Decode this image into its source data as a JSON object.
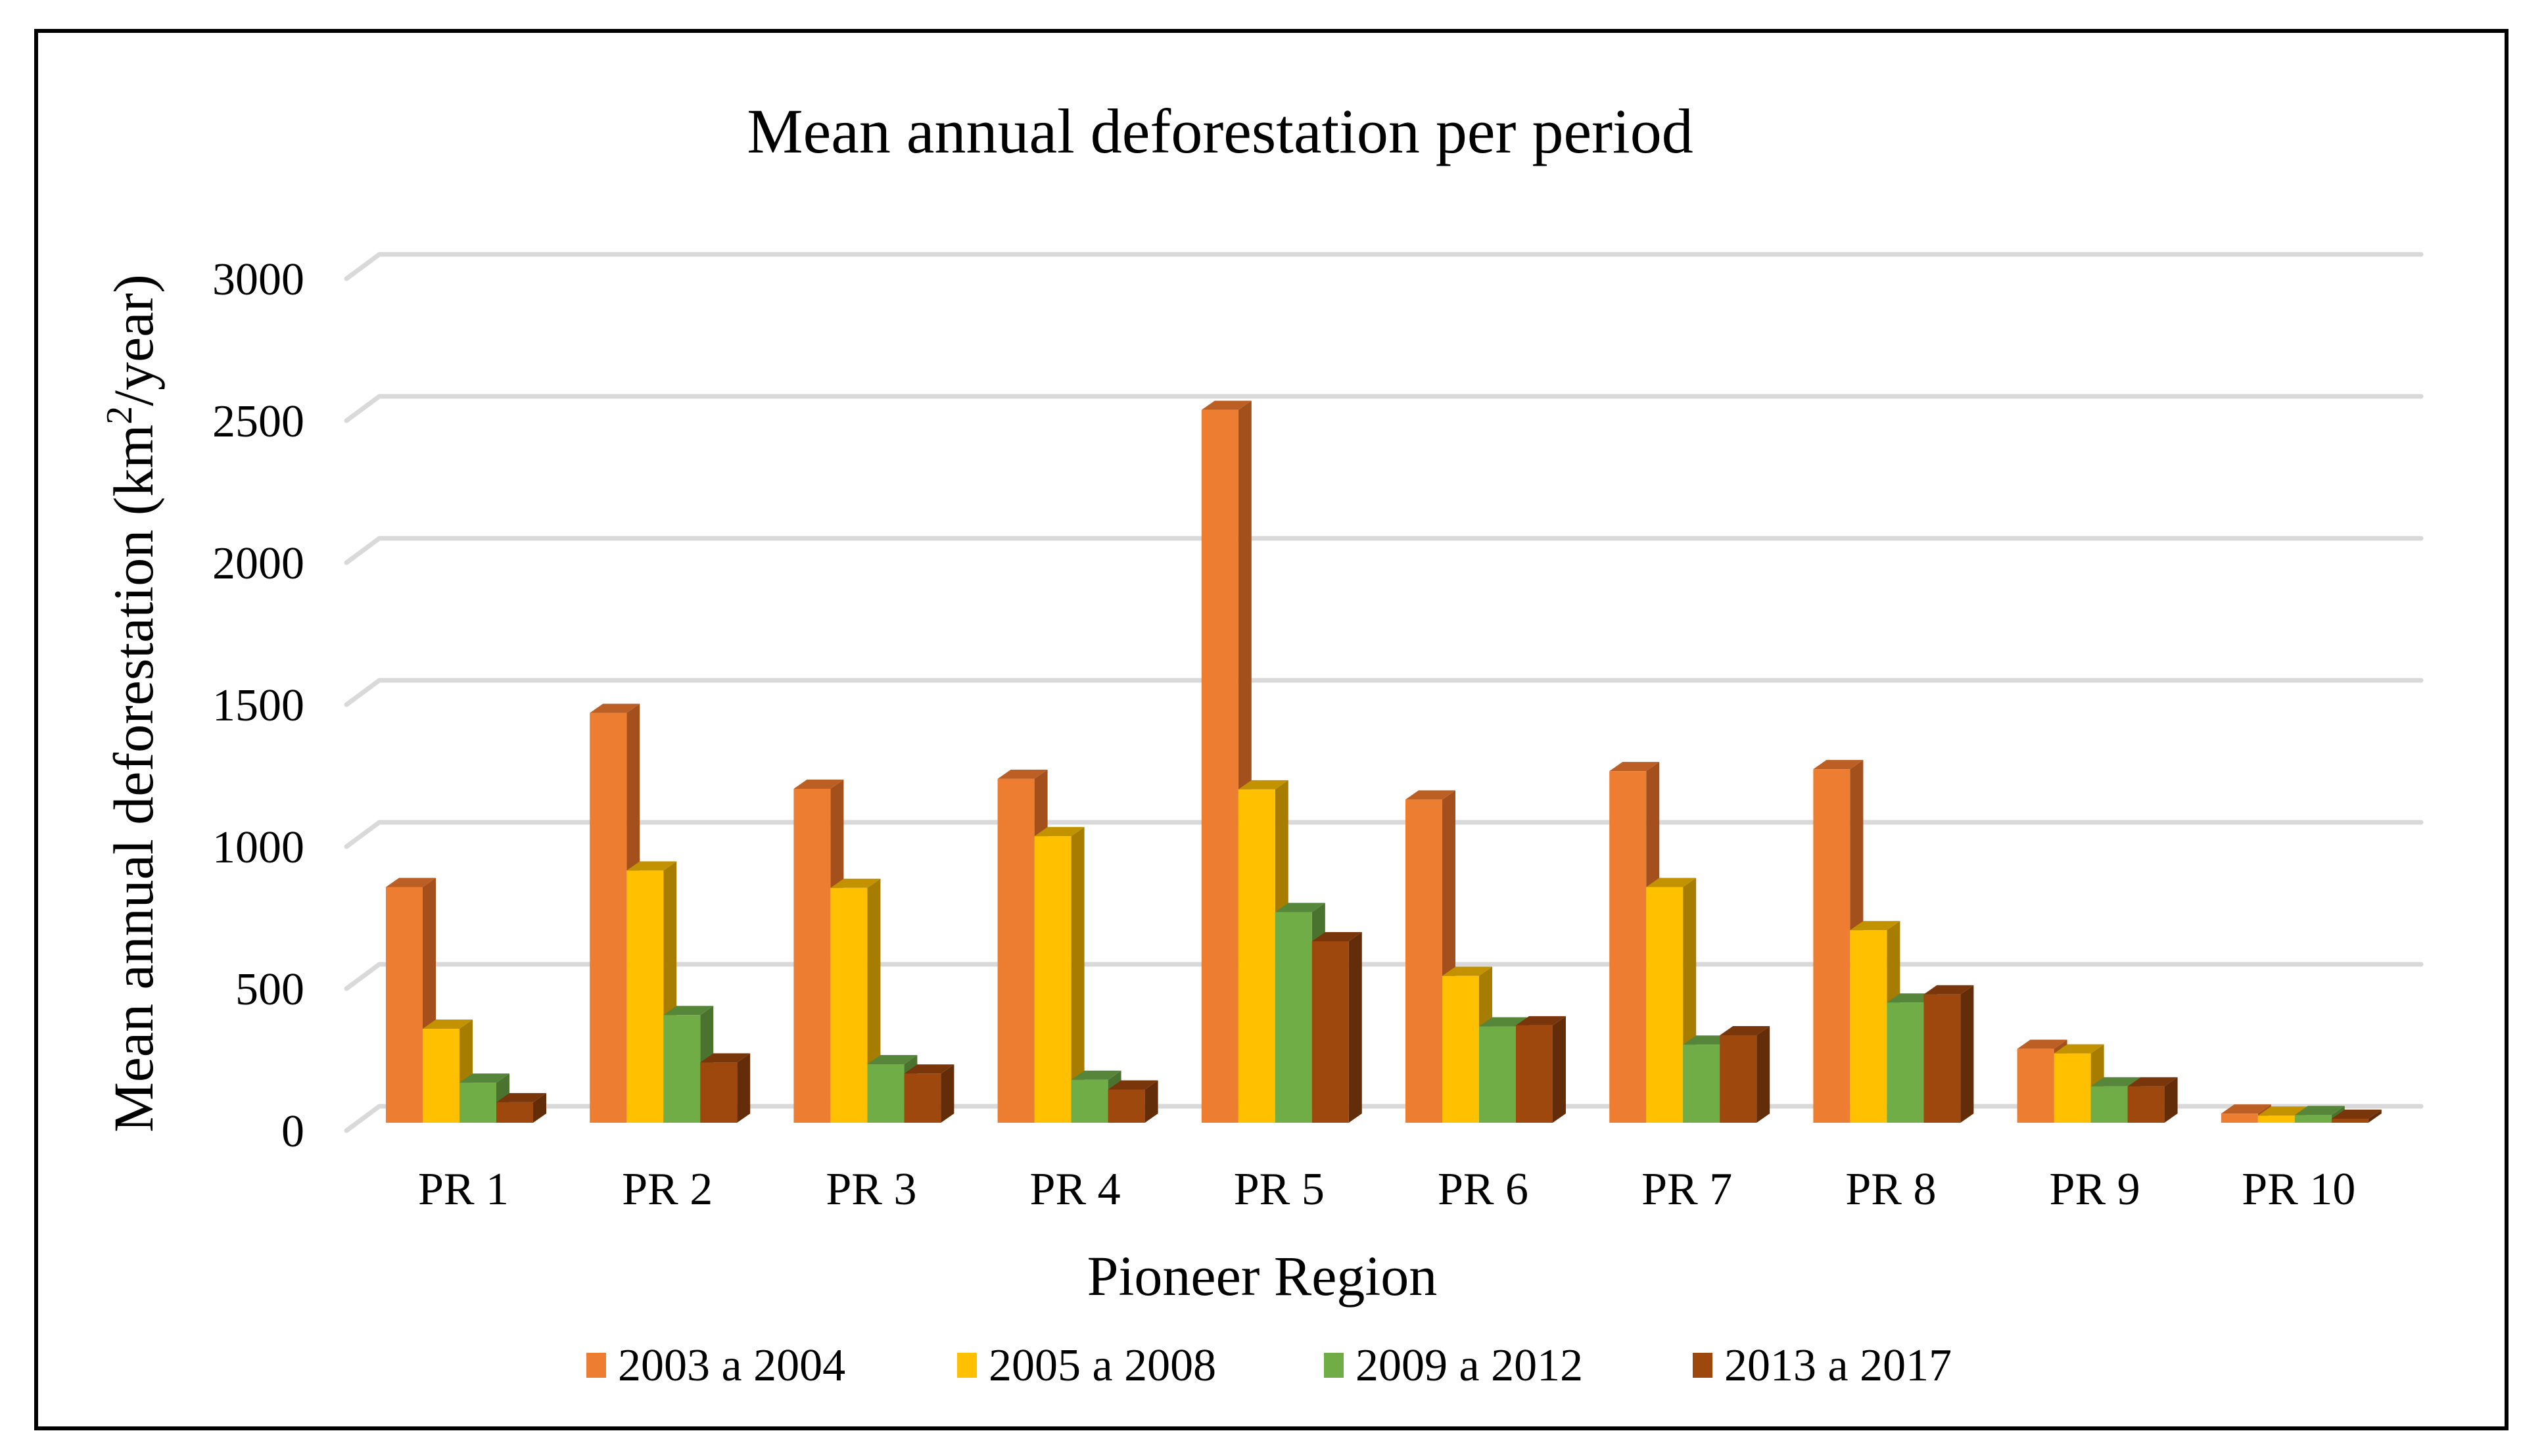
{
  "chart_data": {
    "type": "bar",
    "variant": "3d-clustered-column",
    "title": "Mean annual deforestation per period",
    "xlabel": "Pioneer Region",
    "ylabel": "Mean annual deforestation (km²/year)",
    "ylabel_parts": {
      "before": "Mean annual deforestation (km",
      "sup": "2",
      "after": "/year)"
    },
    "ylim": [
      0,
      3000
    ],
    "yticks": [
      0,
      500,
      1000,
      1500,
      2000,
      2500,
      3000
    ],
    "ytick_labels": [
      "0",
      "500",
      "1000",
      "1500",
      "2000",
      "2500",
      "3000"
    ],
    "grid": true,
    "legend_position": "bottom",
    "categories": [
      "PR 1",
      "PR 2",
      "PR 3",
      "PR 4",
      "PR 5",
      "PR 6",
      "PR 7",
      "PR 8",
      "PR 9",
      "PR 10"
    ],
    "series": [
      {
        "name": "2003 a 2004",
        "color": "#ED7D31",
        "side": "#A3501C",
        "top": "#BC5F25",
        "values": [
          830,
          1443,
          1176,
          1211,
          2510,
          1138,
          1238,
          1245,
          260,
          32
        ]
      },
      {
        "name": "2005 a 2008",
        "color": "#FFC000",
        "side": "#A67D00",
        "top": "#C29200",
        "values": [
          331,
          888,
          827,
          1009,
          1174,
          517,
          830,
          678,
          244,
          25
        ]
      },
      {
        "name": "2009 a 2012",
        "color": "#70AD47",
        "side": "#4A7330",
        "top": "#568639",
        "values": [
          141,
          379,
          206,
          151,
          742,
          339,
          275,
          423,
          128,
          27
        ]
      },
      {
        "name": "2013 a 2017",
        "color": "#9E480E",
        "side": "#632D09",
        "top": "#7A360B",
        "values": [
          72,
          212,
          173,
          117,
          639,
          343,
          308,
          452,
          128,
          14
        ]
      }
    ]
  }
}
